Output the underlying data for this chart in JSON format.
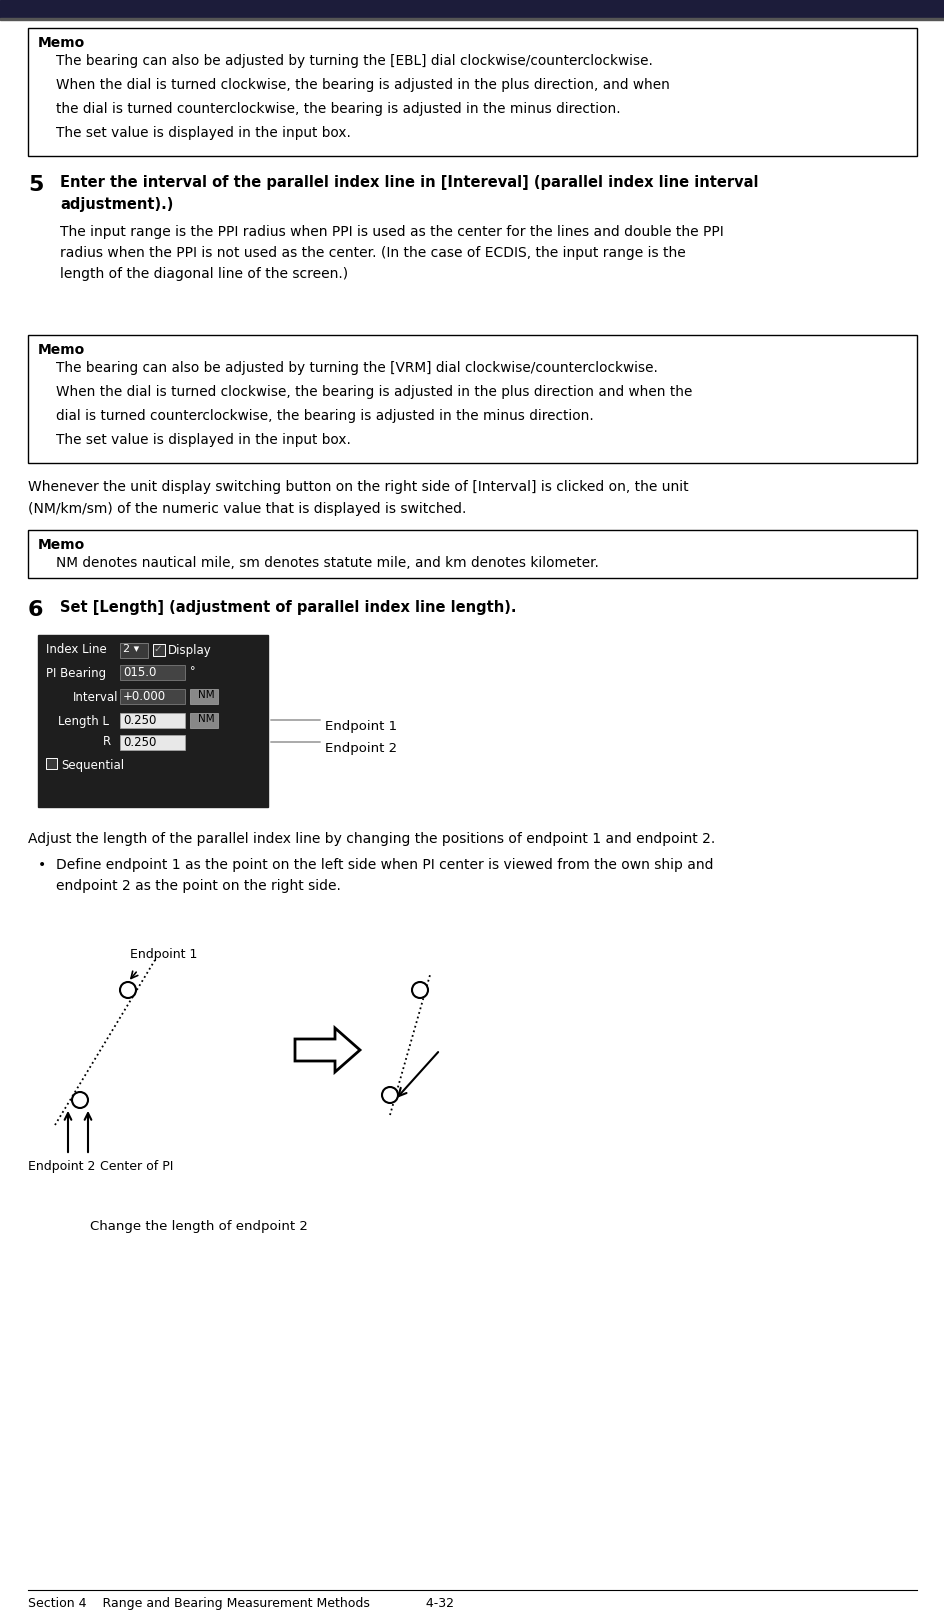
{
  "bg_color": "#ffffff",
  "top_bar_color": "#1c1c3a",
  "top_bar_line_color": "#333333",
  "memo_border": "#000000",
  "footer_text": "Section 4    Range and Bearing Measurement Methods              4-32",
  "memo1_lines": [
    "The bearing can also be adjusted by turning the [EBL] dial clockwise/counterclockwise.",
    "When the dial is turned clockwise, the bearing is adjusted in the plus direction, and when",
    "the dial is turned counterclockwise, the bearing is adjusted in the minus direction.",
    "The set value is displayed in the input box."
  ],
  "step5_bold_line1": "Enter the interval of the parallel index line in [Intereval] (parallel index line interval",
  "step5_bold_line2": "adjustment).)",
  "step5_body": [
    "The input range is the PPI radius when PPI is used as the center for the lines and double the PPI",
    "radius when the PPI is not used as the center. (In the case of ECDIS, the input range is the",
    "length of the diagonal line of the screen.)"
  ],
  "memo2_lines": [
    "The bearing can also be adjusted by turning the [VRM] dial clockwise/counterclockwise.",
    "When the dial is turned clockwise, the bearing is adjusted in the plus direction and when the",
    "dial is turned counterclockwise, the bearing is adjusted in the minus direction.",
    "The set value is displayed in the input box."
  ],
  "switch_lines": [
    "Whenever the unit display switching button on the right side of [Interval] is clicked on, the unit",
    "(NM/km/sm) of the numeric value that is displayed is switched."
  ],
  "memo3_line": "NM denotes nautical mile, sm denotes statute mile, and km denotes kilometer.",
  "step6_bold": "Set [Length] (adjustment of parallel index line length).",
  "adjust_line": "Adjust the length of the parallel index line by changing the positions of endpoint 1 and endpoint 2.",
  "bullet_lines": [
    "Define endpoint 1 as the point on the left side when PI center is viewed from the own ship and",
    "endpoint 2 as the point on the right side."
  ],
  "caption": "Change the length of endpoint 2"
}
